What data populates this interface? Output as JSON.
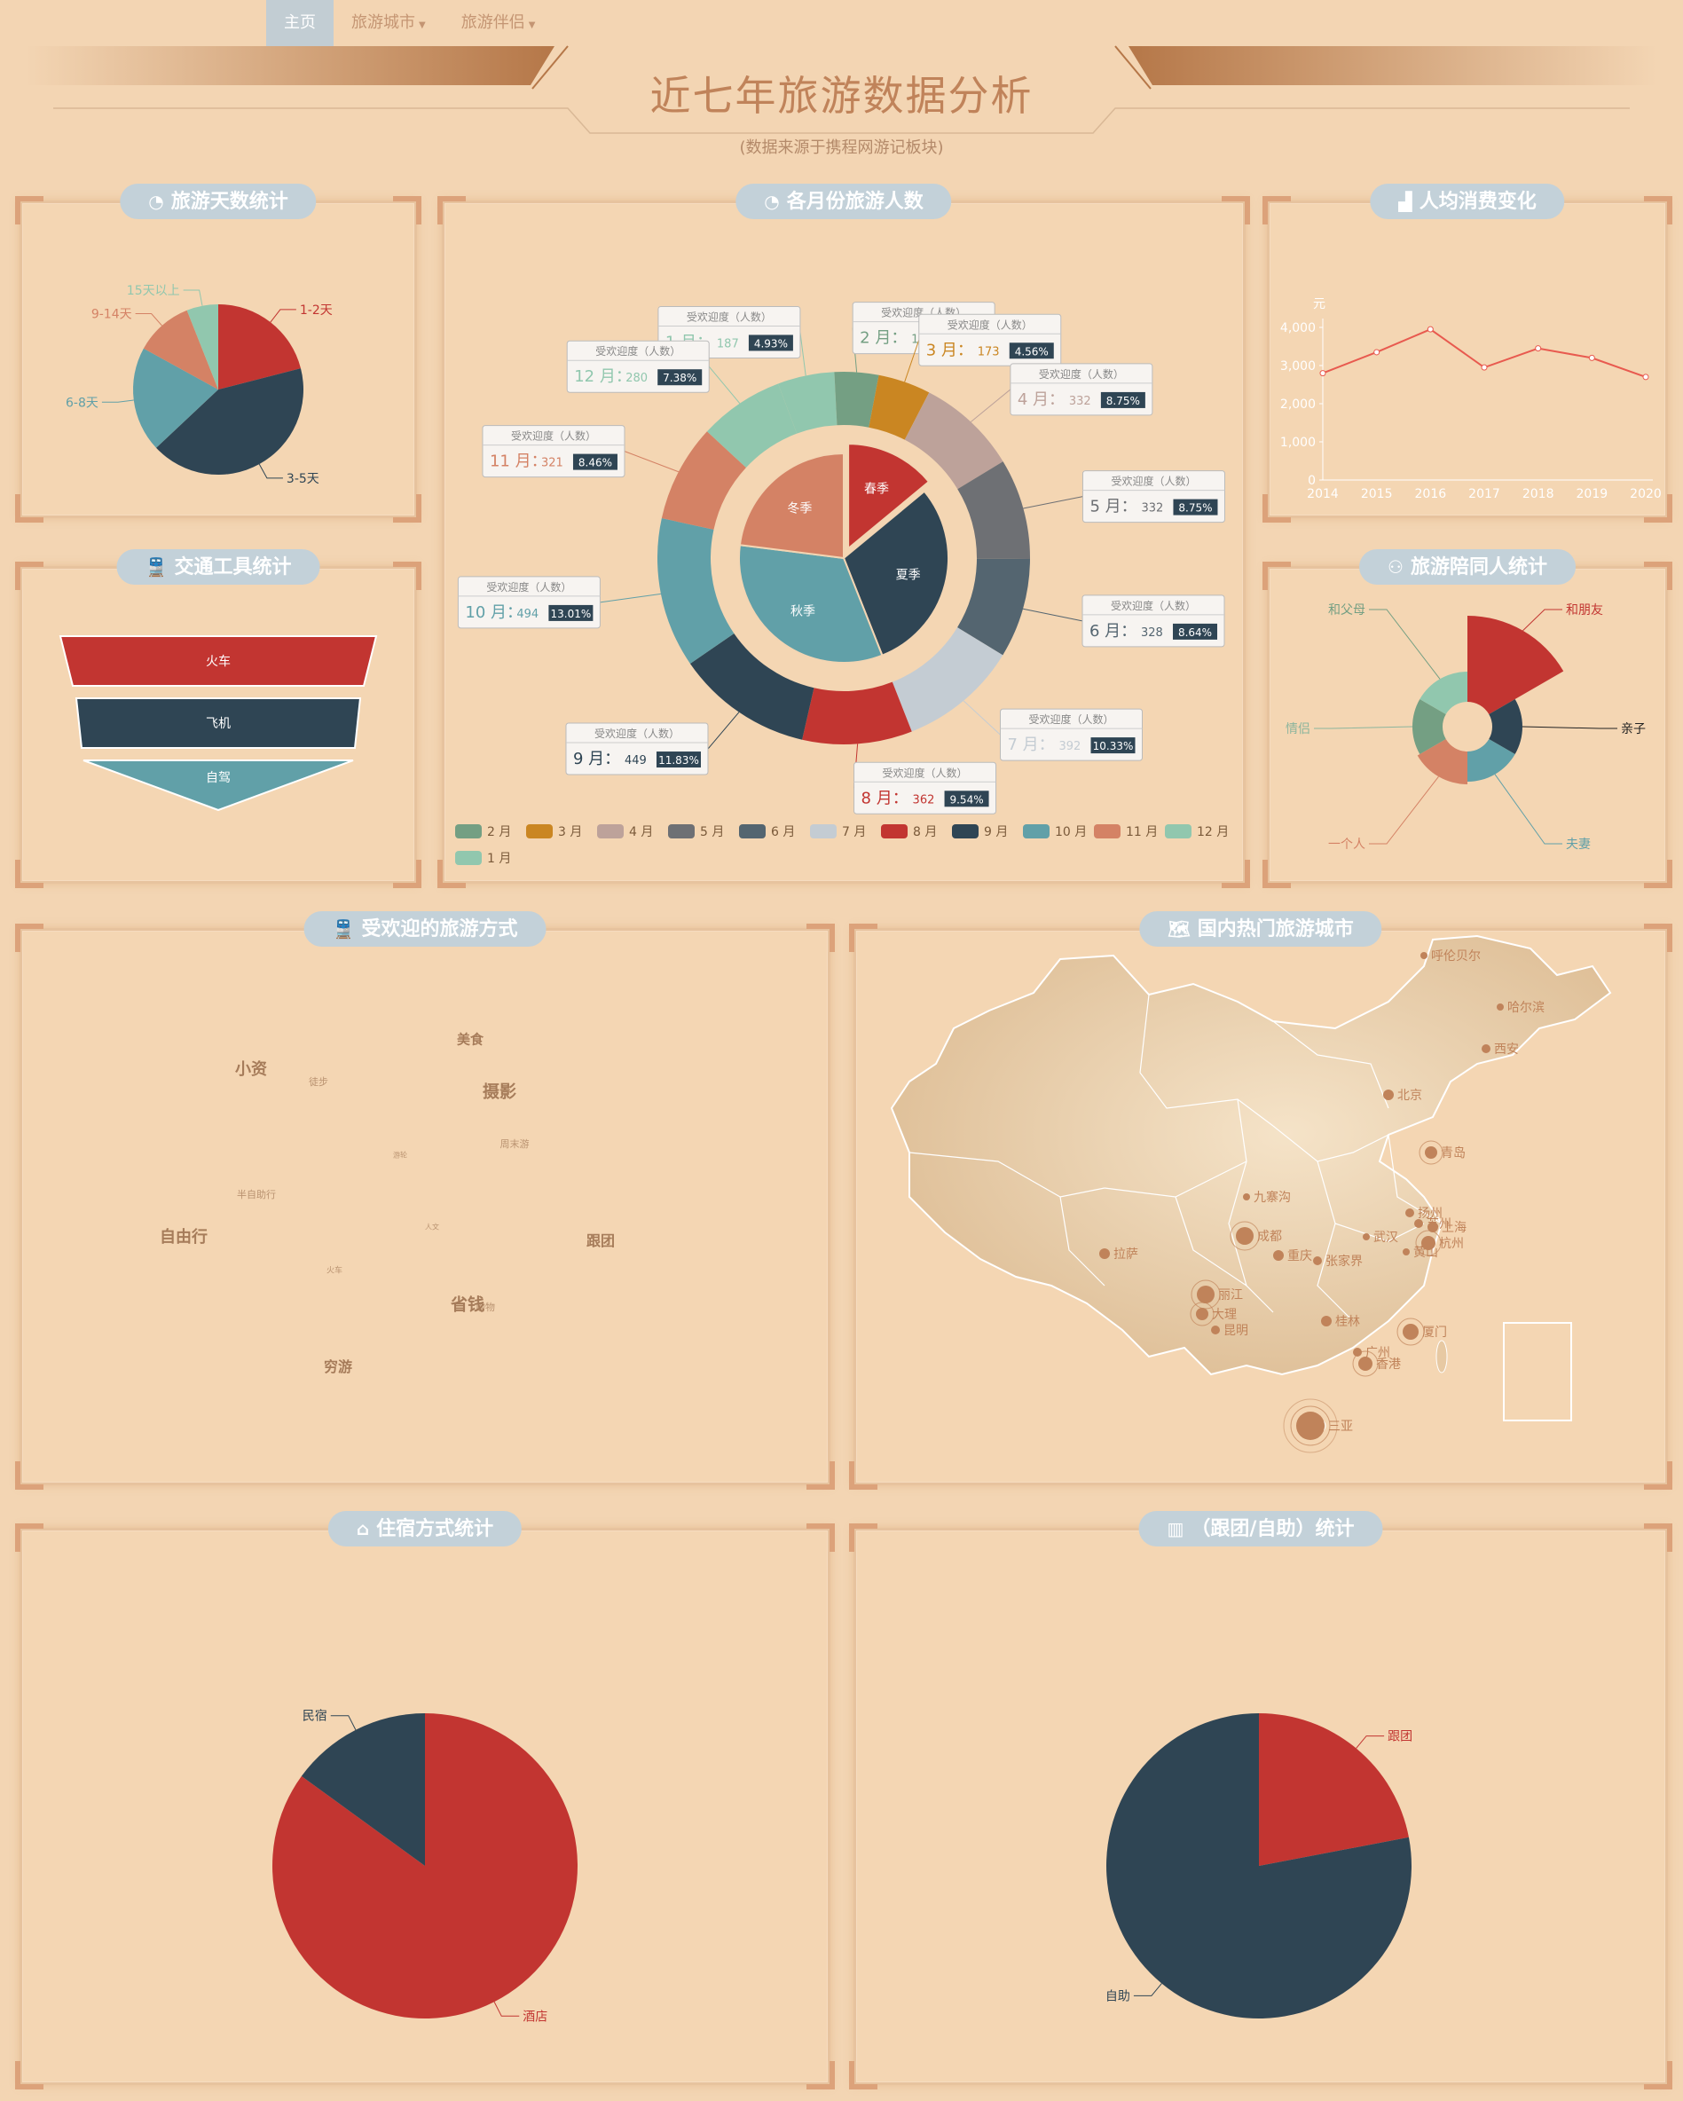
{
  "nav": {
    "items": [
      {
        "label": "主页"
      },
      {
        "label": "旅游城市"
      },
      {
        "label": "旅游伴侣"
      }
    ]
  },
  "header": {
    "title": "近七年旅游数据分析",
    "subtitle": "(数据来源于携程网游记板块)"
  },
  "colors": {
    "bg": "#f3d5b3",
    "red": "#c23531",
    "navy": "#2f4554",
    "teal": "#61a0a8",
    "salmon": "#d48265",
    "mint": "#91c7ae",
    "sage": "#749f83",
    "ochre": "#ca8622",
    "taupe": "#bda29a",
    "grey": "#6e7074",
    "slate": "#546570",
    "silver": "#c4ccd3"
  },
  "panels": {
    "days": {
      "title": "旅游天数统计",
      "icon": "pie-icon"
    },
    "month": {
      "title": "各月份旅游人数",
      "icon": "pie-icon"
    },
    "spend": {
      "title": "人均消费变化",
      "icon": "area-chart-icon"
    },
    "transport": {
      "title": "交通工具统计",
      "icon": "train-icon"
    },
    "companion": {
      "title": "旅游陪同人统计",
      "icon": "people-icon"
    },
    "wordcloud": {
      "title": "受欢迎的旅游方式",
      "icon": "train-icon"
    },
    "map": {
      "title": "国内热门旅游城市",
      "icon": "china-map-icon"
    },
    "lodging": {
      "title": "住宿方式统计",
      "icon": "hotel-icon"
    },
    "tour": {
      "title": "（跟团/自助）统计",
      "icon": "bar-chart-icon"
    }
  },
  "chart_data": [
    {
      "id": "days",
      "type": "pie",
      "title": "旅游天数统计",
      "categories": [
        "1-2天",
        "3-5天",
        "6-8天",
        "9-14天",
        "15天以上"
      ],
      "values": [
        21,
        42,
        20,
        11,
        6
      ]
    },
    {
      "id": "month",
      "type": "pie",
      "title": "各月份旅游人数",
      "inner": {
        "categories": [
          "春季",
          "夏季",
          "秋季",
          "冬季"
        ],
        "values": [
          14,
          30,
          33,
          23
        ]
      },
      "outer": {
        "tooltip_header": "受欢迎度（人数）",
        "categories": [
          "1 月",
          "2 月",
          "3 月",
          "4 月",
          "5 月",
          "6 月",
          "7 月",
          "8 月",
          "9 月",
          "10 月",
          "11 月",
          "12 月"
        ],
        "values": [
          187,
          145,
          173,
          332,
          332,
          328,
          392,
          362,
          449,
          494,
          321,
          280
        ],
        "percent_labels": [
          "4.93%",
          "3.82%",
          "4.56%",
          "8.75%",
          "8.75%",
          "8.64%",
          "10.33%",
          "9.54%",
          "11.83%",
          "13.01%",
          "8.46%",
          "7.38%"
        ]
      },
      "legend": [
        "2 月",
        "3 月",
        "4 月",
        "5 月",
        "6 月",
        "7 月",
        "8 月",
        "9 月",
        "10 月",
        "11 月",
        "12 月",
        "1 月"
      ]
    },
    {
      "id": "spend",
      "type": "line",
      "title": "人均消费变化",
      "ylabel": "元",
      "x": [
        "2014",
        "2015",
        "2016",
        "2017",
        "2018",
        "2019",
        "2020"
      ],
      "values": [
        2800,
        3350,
        3950,
        2950,
        3450,
        3200,
        2700
      ],
      "ylim": [
        0,
        4000
      ],
      "yticks": [
        "0",
        "1,000",
        "2,000",
        "3,000",
        "4,000"
      ]
    },
    {
      "id": "transport",
      "type": "funnel",
      "title": "交通工具统计",
      "categories": [
        "火车",
        "飞机",
        "自驾"
      ],
      "values": [
        100,
        80,
        60
      ]
    },
    {
      "id": "companion",
      "type": "pie",
      "title": "旅游陪同人统计",
      "categories": [
        "和朋友",
        "亲子",
        "夫妻",
        "一个人",
        "情侣",
        "和父母"
      ],
      "values": [
        100,
        22,
        22,
        30,
        9,
        16
      ]
    },
    {
      "id": "lodging",
      "type": "pie",
      "title": "住宿方式统计",
      "categories": [
        "酒店",
        "民宿"
      ],
      "values": [
        85,
        15
      ]
    },
    {
      "id": "tour",
      "type": "pie",
      "title": "（跟团/自助）统计",
      "categories": [
        "跟团",
        "自助"
      ],
      "values": [
        22,
        78
      ]
    }
  ],
  "wordcloud": {
    "words": [
      {
        "text": "美食",
        "size": 15
      },
      {
        "text": "小资",
        "size": 18
      },
      {
        "text": "徒步",
        "size": 11
      },
      {
        "text": "摄影",
        "size": 19
      },
      {
        "text": "周末游",
        "size": 11
      },
      {
        "text": "游轮",
        "size": 8
      },
      {
        "text": "半自助行",
        "size": 11
      },
      {
        "text": "自由行",
        "size": 18
      },
      {
        "text": "人文",
        "size": 8
      },
      {
        "text": "跟团",
        "size": 16
      },
      {
        "text": "火车",
        "size": 9
      },
      {
        "text": "省钱",
        "size": 19
      },
      {
        "text": "购物",
        "size": 11
      },
      {
        "text": "穷游",
        "size": 16
      }
    ]
  },
  "map": {
    "cities": [
      {
        "name": "呼伦贝尔"
      },
      {
        "name": "哈尔滨"
      },
      {
        "name": "西安"
      },
      {
        "name": "北京"
      },
      {
        "name": "青岛"
      },
      {
        "name": "九寨沟"
      },
      {
        "name": "扬州"
      },
      {
        "name": "苏州"
      },
      {
        "name": "上海"
      },
      {
        "name": "杭州"
      },
      {
        "name": "武汉"
      },
      {
        "name": "成都"
      },
      {
        "name": "重庆"
      },
      {
        "name": "张家界"
      },
      {
        "name": "黄山"
      },
      {
        "name": "拉萨"
      },
      {
        "name": "丽江"
      },
      {
        "name": "大理"
      },
      {
        "name": "昆明"
      },
      {
        "name": "桂林"
      },
      {
        "name": "厦门"
      },
      {
        "name": "广州"
      },
      {
        "name": "香港"
      },
      {
        "name": "三亚"
      }
    ]
  }
}
